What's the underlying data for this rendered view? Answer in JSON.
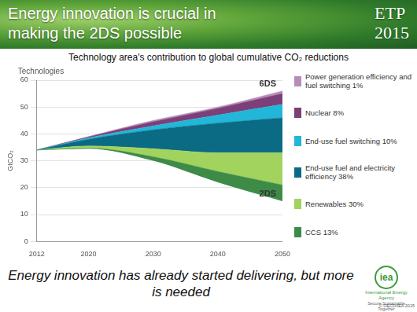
{
  "chart_data": {
    "type": "area",
    "title": "Technology area's contribution to global cumulative CO₂ reductions",
    "y_label": "GtCO₂",
    "panel_label": "Technologies",
    "x": [
      2012,
      2020,
      2030,
      2040,
      2050
    ],
    "xlim": [
      2012,
      2050
    ],
    "xticks": [
      2012,
      2020,
      2030,
      2040,
      2050
    ],
    "ylim": [
      0,
      60
    ],
    "yticks": [
      0,
      10,
      20,
      30,
      40,
      50,
      60
    ],
    "grid": true,
    "stacked": true,
    "legend": "right",
    "lower_bound": {
      "name": "2DS",
      "values": [
        34,
        34.5,
        30,
        22,
        15
      ]
    },
    "upper_label": "6DS",
    "series": [
      {
        "name": "CCS 13%",
        "color": "#3d8b46",
        "values": [
          0,
          0.2,
          1.5,
          4,
          6
        ]
      },
      {
        "name": "Renewables 30%",
        "color": "#a2d35e",
        "values": [
          0,
          0.8,
          3,
          7,
          12
        ]
      },
      {
        "name": "End-use fuel and electricity efficiency 38%",
        "color": "#0b6b84",
        "values": [
          0,
          2.5,
          7,
          11,
          13
        ]
      },
      {
        "name": "End-use fuel switching 10%",
        "color": "#22b6d8",
        "values": [
          0,
          0.5,
          1.5,
          3,
          5
        ]
      },
      {
        "name": "Nuclear 8%",
        "color": "#7d3f78",
        "values": [
          0,
          0.4,
          1.5,
          2.5,
          4
        ]
      },
      {
        "name": "Power generation efficiency and fuel switching 1%",
        "color": "#b98bb8",
        "values": [
          0,
          0.1,
          0.5,
          0.5,
          1
        ]
      }
    ]
  },
  "slide": {
    "title": "Energy innovation is crucial in making the 2DS possible",
    "badge": [
      "ETP",
      "2015"
    ],
    "footer": "Energy innovation has already started delivering, but more is needed",
    "logo": {
      "mark": "iea",
      "name": "International Energy Agency",
      "tagline": "Secure Sustainable Together"
    },
    "copyright": "© OECD/IEA 2015"
  }
}
